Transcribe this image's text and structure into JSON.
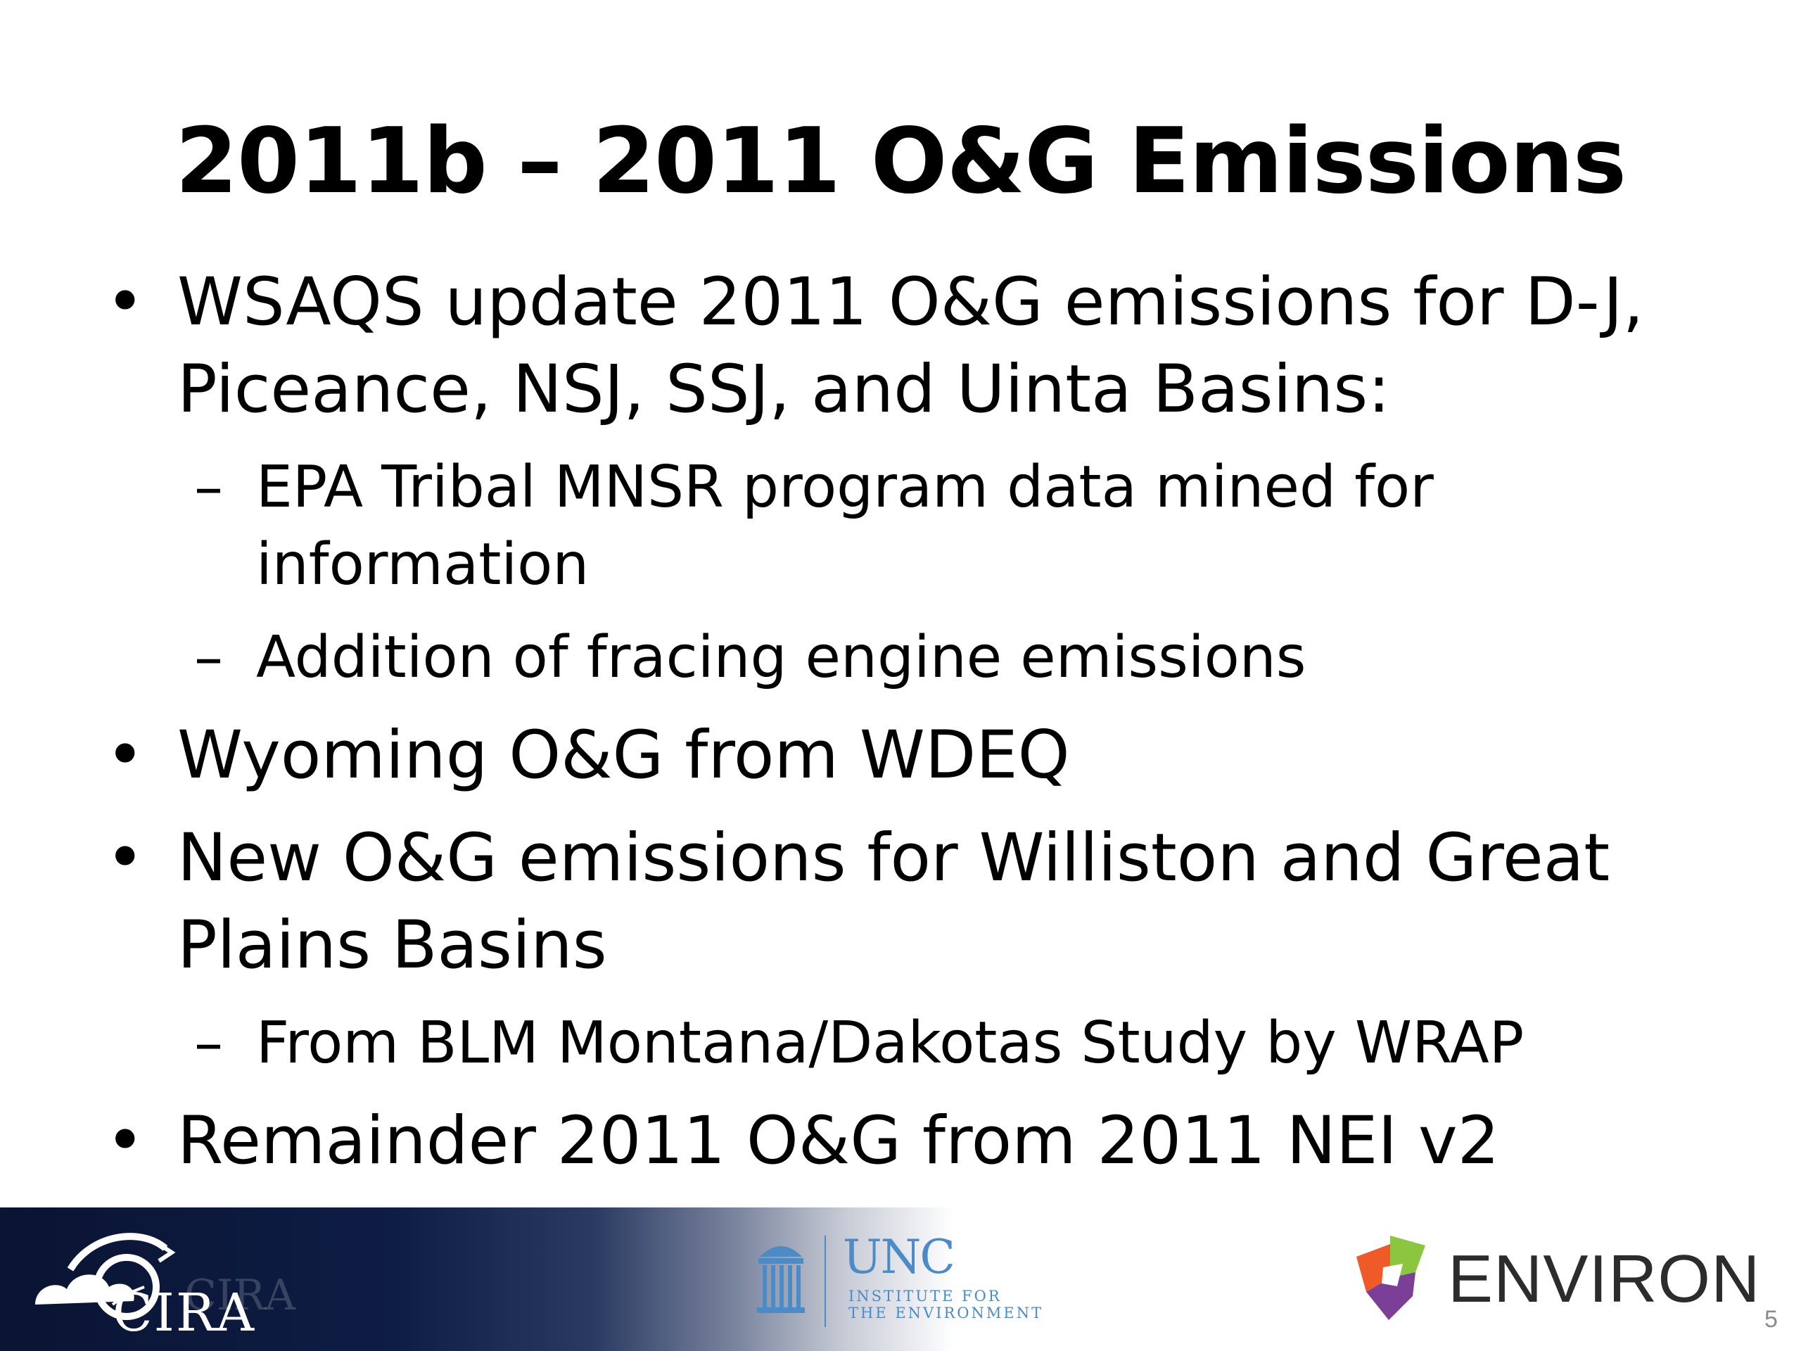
{
  "slide": {
    "title": "2011b – 2011 O&G Emissions",
    "bullets": [
      {
        "marker": "•",
        "text": "WSAQS update 2011 O&G emissions for D-J, Piceance, NSJ, SSJ, and Uinta Basins:"
      },
      {
        "marker": "–",
        "text": "EPA Tribal MNSR program data mined for information"
      },
      {
        "marker": "–",
        "text": "Addition of fracing engine emissions"
      },
      {
        "marker": "•",
        "text": "Wyoming O&G from WDEQ"
      },
      {
        "marker": "•",
        "text": "New O&G emissions for Williston and Great Plains Basins"
      },
      {
        "marker": "–",
        "text": "From BLM Montana/Dakotas Study by WRAP"
      },
      {
        "marker": "•",
        "text": "Remainder 2011 O&G from 2011 NEI v2"
      }
    ],
    "page_number": "5"
  },
  "footer": {
    "cira": {
      "text": "CIRA",
      "ghost_text": "CIRA",
      "icon": "cira-cloud-logo-icon"
    },
    "unc": {
      "title": "UNC",
      "subtitle_line1": "INSTITUTE FOR",
      "subtitle_line2": "THE ENVIRONMENT",
      "icon": "old-well-icon",
      "color": "#4b8bc8"
    },
    "environ": {
      "text": "ENVIRON",
      "icon": "environ-shield-icon"
    }
  },
  "colors": {
    "footer_dark": "#0a1433",
    "text": "#000000"
  }
}
